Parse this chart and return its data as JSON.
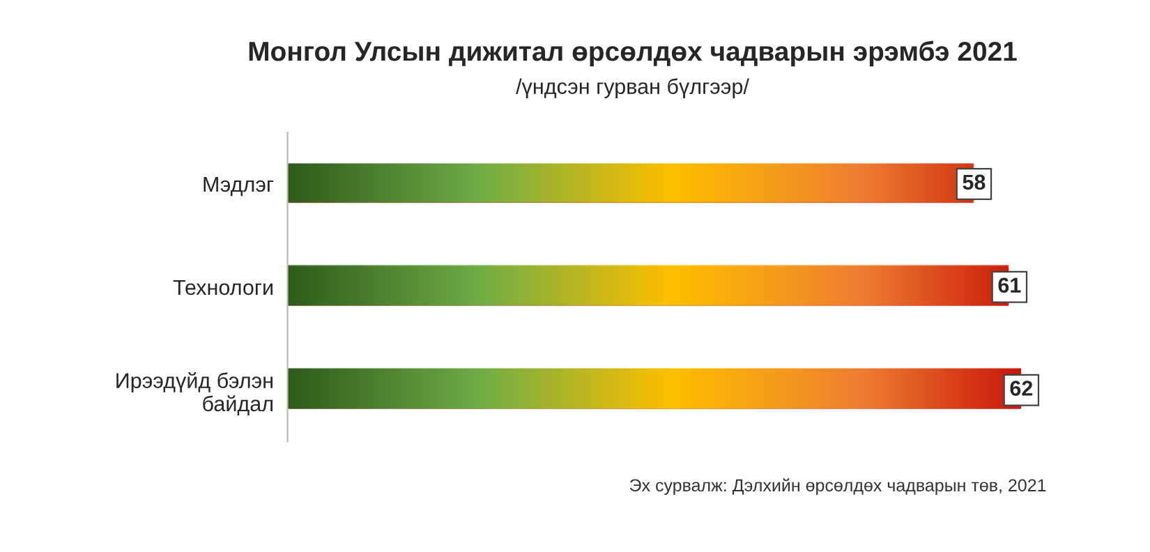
{
  "chart_data": {
    "type": "bar",
    "orientation": "horizontal",
    "title": "Монгол Улсын дижитал өрсөлдөх чадварын эрэмбэ 2021",
    "subtitle": "/үндсэн гурван бүлгээр/",
    "categories": [
      "Мэдлэг",
      "Технологи",
      "Ирээдүйд бэлэн байдал"
    ],
    "values": [
      58,
      61,
      62
    ],
    "color": "#c00000",
    "tick_labels": "y",
    "data_labels": true,
    "grid": false,
    "legend": false,
    "annotations": [
      "Эх сурвалж: Дэлхийн өрсөлдөх чадварын төв, 2021"
    ]
  }
}
